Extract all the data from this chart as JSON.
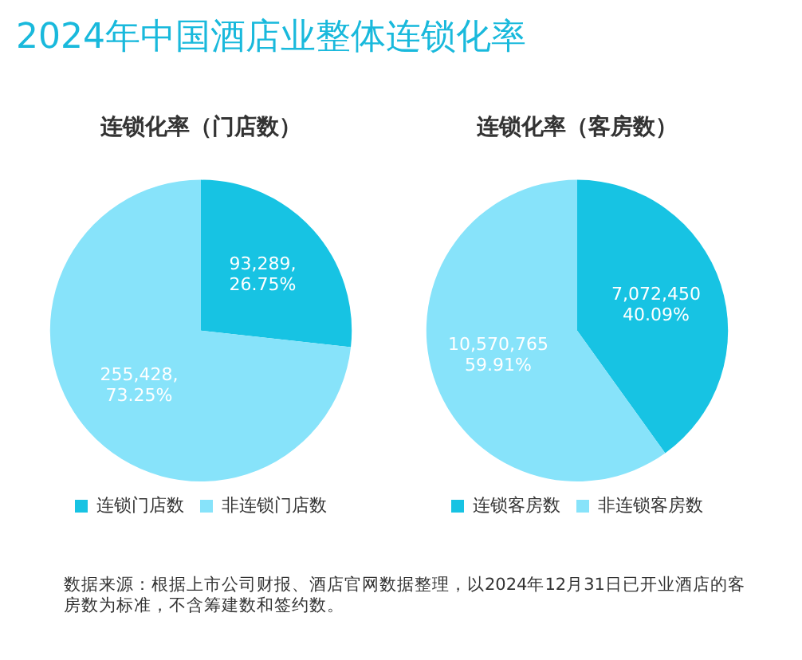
{
  "chart_data": [
    {
      "type": "other",
      "title": "2024年中国酒店业整体连锁化率",
      "annotations": [
        "数据来源：根据上市公司财报、酒店官网数据整理，以2024年12月31日已开业酒店的客房数为标准，不含筹建数和签约数。"
      ]
    },
    {
      "type": "pie",
      "title": "连锁化率（门店数）",
      "categories": [
        "连锁门店数",
        "非连锁门店数"
      ],
      "values": [
        93289,
        255428
      ],
      "colors": [
        "#17c3e3",
        "#87e3fa"
      ],
      "value_labels": [
        "93,289,\n26.75%",
        "255,428,\n73.25%"
      ],
      "legend": "bottom"
    },
    {
      "type": "pie",
      "title": "连锁化率（客房数）",
      "categories": [
        "连锁客房数",
        "非连锁客房数"
      ],
      "values": [
        7072450,
        10570765
      ],
      "colors": [
        "#17c3e3",
        "#87e3fa"
      ],
      "value_labels": [
        "7,072,450\n40.09%",
        "10,570,765\n59.91%"
      ],
      "legend": "bottom"
    }
  ]
}
